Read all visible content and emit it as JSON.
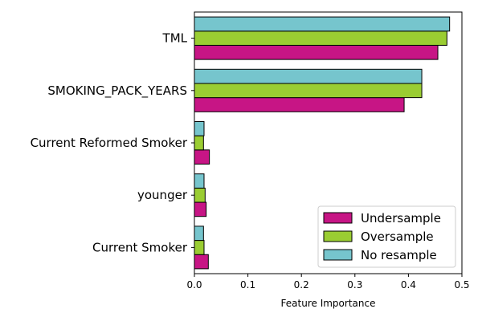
{
  "chart_data": {
    "type": "bar",
    "orientation": "horizontal",
    "title": "",
    "xlabel": "Feature Importance",
    "ylabel": "",
    "xlim": [
      0,
      0.5
    ],
    "xticks": [
      "0.0",
      "0.1",
      "0.2",
      "0.3",
      "0.4",
      "0.5"
    ],
    "categories": [
      "TML",
      "SMOKING_PACK_YEARS",
      "Current Reformed Smoker",
      "younger",
      "Current Smoker"
    ],
    "series": [
      {
        "name": "Undersample",
        "color": "#C71585",
        "values": [
          0.455,
          0.392,
          0.028,
          0.022,
          0.026
        ]
      },
      {
        "name": "Oversample",
        "color": "#9ACD32",
        "values": [
          0.472,
          0.425,
          0.017,
          0.02,
          0.018
        ]
      },
      {
        "name": "No resample",
        "color": "#76C5CD",
        "values": [
          0.477,
          0.425,
          0.018,
          0.018,
          0.017
        ]
      }
    ],
    "legend": {
      "position": "lower-right",
      "entries": [
        "Undersample",
        "Oversample",
        "No resample"
      ]
    },
    "grid": false
  }
}
